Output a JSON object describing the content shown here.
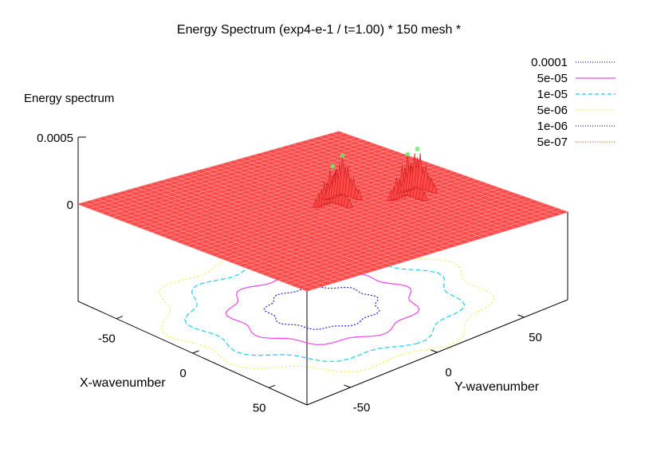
{
  "chart_data": {
    "type": "surface3d",
    "title": "Energy Spectrum (exp4-e-1 / t=1.00) * 150 mesh *",
    "zlabel": "Energy spectrum",
    "xlabel": "X-wavenumber",
    "ylabel": "Y-wavenumber",
    "x_ticks": [
      "-50",
      "0",
      "50"
    ],
    "y_ticks": [
      "-50",
      "0",
      "50"
    ],
    "z_ticks": [
      "0.0005",
      "0"
    ],
    "x_range": [
      -75,
      75
    ],
    "y_range": [
      -75,
      75
    ],
    "z_range": [
      0,
      0.0005
    ],
    "surface_color": "#ff4a4a",
    "legend": [
      {
        "label": "0.0001",
        "color": "#2222cc",
        "style": "dotted"
      },
      {
        "label": "5e-05",
        "color": "#ee44ee",
        "style": "solid"
      },
      {
        "label": "1e-05",
        "color": "#22ccee",
        "style": "dashed"
      },
      {
        "label": "5e-06",
        "color": "#eeee44",
        "style": "dotted"
      },
      {
        "label": "1e-06",
        "color": "#222266",
        "style": "dotted"
      },
      {
        "label": "5e-07",
        "color": "#ee6622",
        "style": "dotted"
      }
    ],
    "peaks": [
      {
        "x": -5,
        "y": 10,
        "height": 0.00028
      },
      {
        "x": -10,
        "y": 20,
        "height": 0.0003
      },
      {
        "x": 10,
        "y": 40,
        "height": 0.00032
      },
      {
        "x": 5,
        "y": 50,
        "height": 0.0003
      }
    ]
  }
}
